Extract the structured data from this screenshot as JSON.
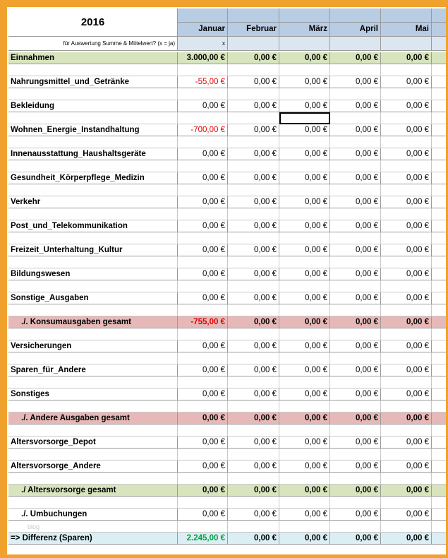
{
  "title": "2016",
  "header_note": "für Auswertung Summe & Mittelwert? (x = ja)",
  "months": [
    "Januar",
    "Februar",
    "März",
    "April",
    "Mai"
  ],
  "flags": [
    "x"
  ],
  "watermark": "blog",
  "rows": [
    {
      "label": "Einnahmen",
      "values": [
        "3.000,00 €",
        "0,00 €",
        "0,00 €",
        "0,00 €",
        "0,00 €"
      ]
    },
    {
      "label": "Nahrungsmittel_und_Getränke",
      "values": [
        "-55,00 €",
        "0,00 €",
        "0,00 €",
        "0,00 €",
        "0,00 €"
      ]
    },
    {
      "label": "Bekleidung",
      "values": [
        "0,00 €",
        "0,00 €",
        "0,00 €",
        "0,00 €",
        "0,00 €"
      ]
    },
    {
      "label": "Wohnen_Energie_Instandhaltung",
      "values": [
        "-700,00 €",
        "0,00 €",
        "0,00 €",
        "0,00 €",
        "0,00 €"
      ]
    },
    {
      "label": "Innenausstattung_Haushaltsgeräte",
      "values": [
        "0,00 €",
        "0,00 €",
        "0,00 €",
        "0,00 €",
        "0,00 €"
      ]
    },
    {
      "label": "Gesundheit_Körperpflege_Medizin",
      "values": [
        "0,00 €",
        "0,00 €",
        "0,00 €",
        "0,00 €",
        "0,00 €"
      ]
    },
    {
      "label": "Verkehr",
      "values": [
        "0,00 €",
        "0,00 €",
        "0,00 €",
        "0,00 €",
        "0,00 €"
      ]
    },
    {
      "label": "Post_und_Telekommunikation",
      "values": [
        "0,00 €",
        "0,00 €",
        "0,00 €",
        "0,00 €",
        "0,00 €"
      ]
    },
    {
      "label": "Freizeit_Unterhaltung_Kultur",
      "values": [
        "0,00 €",
        "0,00 €",
        "0,00 €",
        "0,00 €",
        "0,00 €"
      ]
    },
    {
      "label": "Bildungswesen",
      "values": [
        "0,00 €",
        "0,00 €",
        "0,00 €",
        "0,00 €",
        "0,00 €"
      ]
    },
    {
      "label": "Sonstige_Ausgaben",
      "values": [
        "0,00 €",
        "0,00 €",
        "0,00 €",
        "0,00 €",
        "0,00 €"
      ]
    },
    {
      "label": "./. Konsumausgaben gesamt",
      "values": [
        "-755,00 €",
        "0,00 €",
        "0,00 €",
        "0,00 €",
        "0,00 €"
      ]
    },
    {
      "label": "Versicherungen",
      "values": [
        "0,00 €",
        "0,00 €",
        "0,00 €",
        "0,00 €",
        "0,00 €"
      ]
    },
    {
      "label": "Sparen_für_Andere",
      "values": [
        "0,00 €",
        "0,00 €",
        "0,00 €",
        "0,00 €",
        "0,00 €"
      ]
    },
    {
      "label": "Sonstiges",
      "values": [
        "0,00 €",
        "0,00 €",
        "0,00 €",
        "0,00 €",
        "0,00 €"
      ]
    },
    {
      "label": "./. Andere Ausgaben gesamt",
      "values": [
        "0,00 €",
        "0,00 €",
        "0,00 €",
        "0,00 €",
        "0,00 €"
      ]
    },
    {
      "label": "Altersvorsorge_Depot",
      "values": [
        "0,00 €",
        "0,00 €",
        "0,00 €",
        "0,00 €",
        "0,00 €"
      ]
    },
    {
      "label": "Altersvorsorge_Andere",
      "values": [
        "0,00 €",
        "0,00 €",
        "0,00 €",
        "0,00 €",
        "0,00 €"
      ]
    },
    {
      "label": "./ Altersvorsorge gesamt",
      "values": [
        "0,00 €",
        "0,00 €",
        "0,00 €",
        "0,00 €",
        "0,00 €"
      ]
    },
    {
      "label": "./. Umbuchungen",
      "values": [
        "0,00 €",
        "0,00 €",
        "0,00 €",
        "0,00 €",
        "0,00 €"
      ]
    },
    {
      "label": "=> Differenz (Sparen)",
      "values": [
        "2.245,00 €",
        "0,00 €",
        "0,00 €",
        "0,00 €",
        "0,00 €"
      ]
    }
  ]
}
